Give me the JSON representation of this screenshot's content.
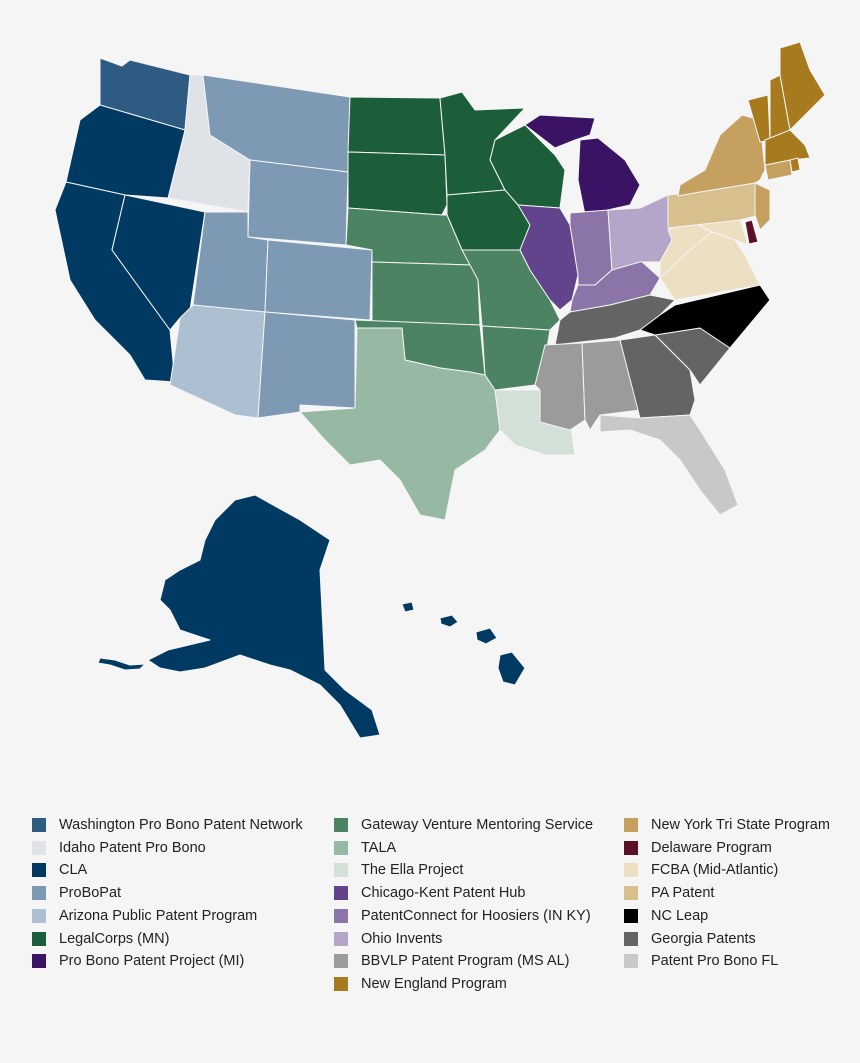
{
  "legend": [
    {
      "label": "Washington Pro Bono Patent Network",
      "color": "#2e5b82"
    },
    {
      "label": "Idaho Patent Pro Bono",
      "color": "#dfe3e8"
    },
    {
      "label": "CLA",
      "color": "#003a63"
    },
    {
      "label": "ProBoPat",
      "color": "#7d99b3"
    },
    {
      "label": "Arizona Public Patent Program",
      "color": "#adc0d1"
    },
    {
      "label": "LegalCorps (MN)",
      "color": "#1b5e39"
    },
    {
      "label": "Pro Bono Patent Project (MI)",
      "color": "#3b1364"
    },
    {
      "label": "Gateway Venture Mentoring Service",
      "color": "#4c8463"
    },
    {
      "label": "TALA",
      "color": "#97b8a3"
    },
    {
      "label": "The Ella Project",
      "color": "#d2e0d7"
    },
    {
      "label": "Chicago-Kent Patent Hub",
      "color": "#61448c"
    },
    {
      "label": "PatentConnect for Hoosiers (IN KY)",
      "color": "#8a74a8"
    },
    {
      "label": "Ohio Invents",
      "color": "#b3a6c9"
    },
    {
      "label": "BBVLP Patent Program (MS AL)",
      "color": "#9b9b9b"
    },
    {
      "label": "New England Program",
      "color": "#a77a1e"
    },
    {
      "label": "New York Tri State Program",
      "color": "#c5a05f"
    },
    {
      "label": "Delaware Program",
      "color": "#5a1126"
    },
    {
      "label": "FCBA (Mid-Atlantic)",
      "color": "#ecdfc2"
    },
    {
      "label": "PA Patent",
      "color": "#d7bf8e"
    },
    {
      "label": "NC Leap",
      "color": "#000000"
    },
    {
      "label": "Georgia Patents",
      "color": "#646464"
    },
    {
      "label": "Patent Pro Bono FL",
      "color": "#c8c8c8"
    }
  ]
}
